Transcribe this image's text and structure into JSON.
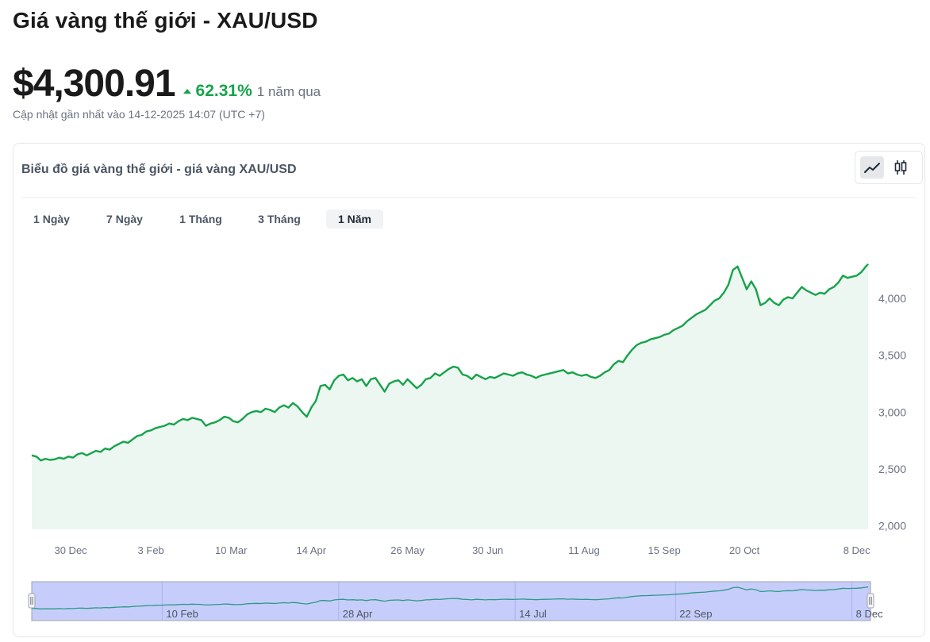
{
  "header": {
    "title": "Giá vàng thế giới - XAU/USD",
    "price": "$4,300.91",
    "change": "62.31%",
    "period": "1 năm qua",
    "updated": "Cập nhật gần nhất vào 14-12-2025 14:07 (UTC +7)"
  },
  "card": {
    "title": "Biểu đồ giá vàng thế giới - giá vàng XAU/USD",
    "chart_types": [
      "line-chart-icon",
      "candlestick-icon"
    ],
    "active_chart_type": "line-chart-icon",
    "ranges": [
      "1 Ngày",
      "7 Ngày",
      "1 Tháng",
      "3 Tháng",
      "1 Năm"
    ],
    "active_range": "1 Năm"
  },
  "colors": {
    "line": "#16a34a",
    "fill": "#edf7f1",
    "navigator_band": "#c7cdfa",
    "navigator_line": "#2b9a8a",
    "up": "#16a34a"
  },
  "chart_data": {
    "type": "area",
    "title": "Biểu đồ giá vàng thế giới - giá vàng XAU/USD",
    "xlabel": "",
    "ylabel": "",
    "ylim": [
      1970,
      4530
    ],
    "y_ticks": [
      2000,
      2500,
      3000,
      3500,
      4000
    ],
    "y_tick_labels": [
      "2,000",
      "2,500",
      "3,000",
      "3,500",
      "4,000"
    ],
    "x_ticks": [
      {
        "day": 17,
        "label": "30 Dec"
      },
      {
        "day": 52,
        "label": "3 Feb"
      },
      {
        "day": 87,
        "label": "10 Mar"
      },
      {
        "day": 122,
        "label": "14 Apr"
      },
      {
        "day": 164,
        "label": "26 May"
      },
      {
        "day": 199,
        "label": "30 Jun"
      },
      {
        "day": 241,
        "label": "11 Aug"
      },
      {
        "day": 276,
        "label": "15 Sep"
      },
      {
        "day": 311,
        "label": "20 Oct"
      },
      {
        "day": 360,
        "label": "8 Dec"
      }
    ],
    "navigator_ticks": [
      {
        "day": 59,
        "label": "10 Feb"
      },
      {
        "day": 136,
        "label": "28 Apr"
      },
      {
        "day": 213,
        "label": "14 Jul"
      },
      {
        "day": 283,
        "label": "22 Sep"
      },
      {
        "day": 360,
        "label": "8 Dec"
      }
    ],
    "x_range": [
      0,
      366
    ],
    "series": [
      {
        "name": "XAU/USD",
        "points": [
          [
            0,
            2620
          ],
          [
            2,
            2610
          ],
          [
            4,
            2575
          ],
          [
            6,
            2590
          ],
          [
            8,
            2580
          ],
          [
            10,
            2585
          ],
          [
            12,
            2600
          ],
          [
            14,
            2590
          ],
          [
            16,
            2610
          ],
          [
            18,
            2600
          ],
          [
            20,
            2630
          ],
          [
            22,
            2640
          ],
          [
            24,
            2620
          ],
          [
            26,
            2640
          ],
          [
            28,
            2660
          ],
          [
            30,
            2650
          ],
          [
            32,
            2680
          ],
          [
            34,
            2670
          ],
          [
            36,
            2700
          ],
          [
            38,
            2720
          ],
          [
            40,
            2740
          ],
          [
            42,
            2730
          ],
          [
            44,
            2760
          ],
          [
            46,
            2790
          ],
          [
            48,
            2800
          ],
          [
            50,
            2830
          ],
          [
            52,
            2840
          ],
          [
            54,
            2860
          ],
          [
            56,
            2870
          ],
          [
            58,
            2880
          ],
          [
            60,
            2900
          ],
          [
            62,
            2890
          ],
          [
            64,
            2920
          ],
          [
            66,
            2940
          ],
          [
            68,
            2930
          ],
          [
            70,
            2950
          ],
          [
            72,
            2940
          ],
          [
            74,
            2930
          ],
          [
            76,
            2880
          ],
          [
            78,
            2900
          ],
          [
            80,
            2910
          ],
          [
            82,
            2930
          ],
          [
            84,
            2960
          ],
          [
            86,
            2950
          ],
          [
            88,
            2920
          ],
          [
            90,
            2910
          ],
          [
            92,
            2940
          ],
          [
            94,
            2980
          ],
          [
            96,
            3000
          ],
          [
            98,
            3010
          ],
          [
            100,
            3000
          ],
          [
            102,
            3030
          ],
          [
            104,
            3020
          ],
          [
            106,
            3000
          ],
          [
            108,
            3040
          ],
          [
            110,
            3060
          ],
          [
            112,
            3040
          ],
          [
            114,
            3080
          ],
          [
            116,
            3050
          ],
          [
            118,
            3000
          ],
          [
            120,
            2960
          ],
          [
            122,
            3040
          ],
          [
            124,
            3100
          ],
          [
            126,
            3230
          ],
          [
            128,
            3240
          ],
          [
            130,
            3200
          ],
          [
            132,
            3280
          ],
          [
            134,
            3320
          ],
          [
            136,
            3330
          ],
          [
            138,
            3280
          ],
          [
            140,
            3300
          ],
          [
            142,
            3270
          ],
          [
            144,
            3290
          ],
          [
            146,
            3230
          ],
          [
            148,
            3290
          ],
          [
            150,
            3300
          ],
          [
            152,
            3240
          ],
          [
            154,
            3180
          ],
          [
            156,
            3250
          ],
          [
            158,
            3270
          ],
          [
            160,
            3280
          ],
          [
            162,
            3240
          ],
          [
            164,
            3290
          ],
          [
            166,
            3250
          ],
          [
            168,
            3210
          ],
          [
            170,
            3240
          ],
          [
            172,
            3290
          ],
          [
            174,
            3300
          ],
          [
            176,
            3340
          ],
          [
            178,
            3320
          ],
          [
            180,
            3350
          ],
          [
            182,
            3380
          ],
          [
            184,
            3400
          ],
          [
            186,
            3390
          ],
          [
            188,
            3330
          ],
          [
            190,
            3320
          ],
          [
            192,
            3290
          ],
          [
            194,
            3330
          ],
          [
            196,
            3310
          ],
          [
            198,
            3290
          ],
          [
            200,
            3310
          ],
          [
            202,
            3300
          ],
          [
            204,
            3320
          ],
          [
            206,
            3340
          ],
          [
            208,
            3330
          ],
          [
            210,
            3320
          ],
          [
            212,
            3340
          ],
          [
            214,
            3350
          ],
          [
            216,
            3330
          ],
          [
            218,
            3320
          ],
          [
            220,
            3300
          ],
          [
            222,
            3320
          ],
          [
            224,
            3330
          ],
          [
            226,
            3340
          ],
          [
            228,
            3350
          ],
          [
            230,
            3360
          ],
          [
            232,
            3370
          ],
          [
            234,
            3340
          ],
          [
            236,
            3350
          ],
          [
            238,
            3330
          ],
          [
            240,
            3320
          ],
          [
            242,
            3330
          ],
          [
            244,
            3310
          ],
          [
            246,
            3300
          ],
          [
            248,
            3320
          ],
          [
            250,
            3350
          ],
          [
            252,
            3370
          ],
          [
            254,
            3420
          ],
          [
            256,
            3450
          ],
          [
            258,
            3440
          ],
          [
            260,
            3500
          ],
          [
            262,
            3550
          ],
          [
            264,
            3590
          ],
          [
            266,
            3610
          ],
          [
            268,
            3620
          ],
          [
            270,
            3640
          ],
          [
            272,
            3650
          ],
          [
            274,
            3660
          ],
          [
            276,
            3680
          ],
          [
            278,
            3690
          ],
          [
            280,
            3720
          ],
          [
            282,
            3740
          ],
          [
            284,
            3760
          ],
          [
            286,
            3800
          ],
          [
            288,
            3830
          ],
          [
            290,
            3860
          ],
          [
            292,
            3880
          ],
          [
            294,
            3900
          ],
          [
            296,
            3940
          ],
          [
            298,
            3980
          ],
          [
            300,
            4000
          ],
          [
            302,
            4050
          ],
          [
            304,
            4120
          ],
          [
            306,
            4250
          ],
          [
            308,
            4280
          ],
          [
            310,
            4180
          ],
          [
            312,
            4080
          ],
          [
            314,
            4150
          ],
          [
            316,
            4080
          ],
          [
            318,
            3940
          ],
          [
            320,
            3960
          ],
          [
            322,
            4000
          ],
          [
            324,
            3960
          ],
          [
            326,
            3940
          ],
          [
            328,
            3990
          ],
          [
            330,
            4010
          ],
          [
            332,
            4000
          ],
          [
            334,
            4050
          ],
          [
            336,
            4100
          ],
          [
            338,
            4070
          ],
          [
            340,
            4050
          ],
          [
            342,
            4030
          ],
          [
            344,
            4050
          ],
          [
            346,
            4040
          ],
          [
            348,
            4080
          ],
          [
            350,
            4100
          ],
          [
            352,
            4140
          ],
          [
            354,
            4200
          ],
          [
            356,
            4180
          ],
          [
            358,
            4190
          ],
          [
            360,
            4200
          ],
          [
            362,
            4230
          ],
          [
            364,
            4280
          ],
          [
            365,
            4300.91
          ]
        ]
      }
    ],
    "navigator": {
      "selection": [
        0,
        366
      ]
    }
  }
}
